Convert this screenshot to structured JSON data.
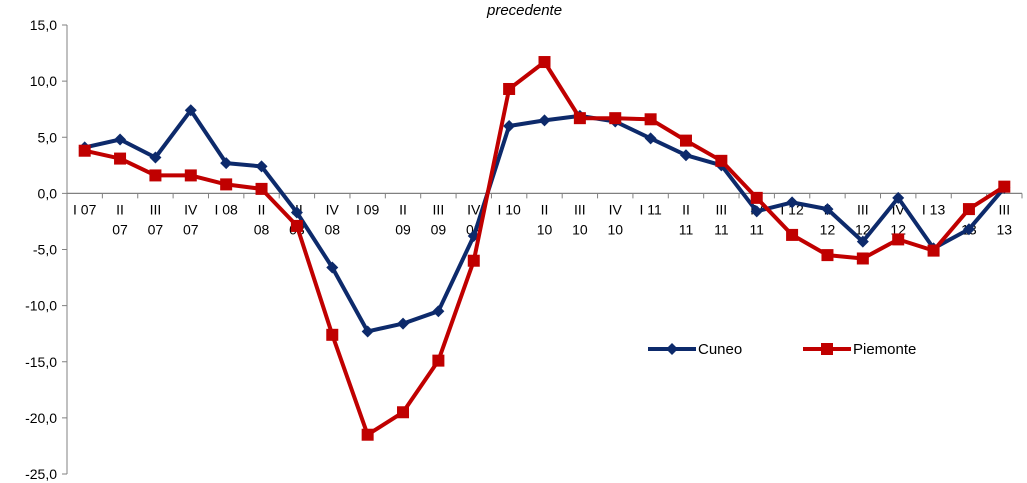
{
  "chart_data": {
    "type": "line",
    "title": "precedente",
    "categories": [
      [
        "I 07"
      ],
      [
        "II",
        "07"
      ],
      [
        "III",
        "07"
      ],
      [
        "IV",
        "07"
      ],
      [
        "I 08"
      ],
      [
        "II",
        "08"
      ],
      [
        "III",
        "08"
      ],
      [
        "IV",
        "08"
      ],
      [
        "I 09"
      ],
      [
        "II",
        "09"
      ],
      [
        "III",
        "09"
      ],
      [
        "IV",
        "09"
      ],
      [
        "I 10"
      ],
      [
        "II",
        "10"
      ],
      [
        "III",
        "10"
      ],
      [
        "IV",
        "10"
      ],
      [
        "I 11"
      ],
      [
        "II",
        "11"
      ],
      [
        "III",
        "11"
      ],
      [
        "IV",
        "11"
      ],
      [
        "I 12"
      ],
      [
        "II",
        "12"
      ],
      [
        "III",
        "12"
      ],
      [
        "IV",
        "12"
      ],
      [
        "I 13"
      ],
      [
        "II",
        "13"
      ],
      [
        "III",
        "13"
      ]
    ],
    "series": [
      {
        "name": "Cuneo",
        "color": "#0d2a6b",
        "marker": "diamond",
        "values": [
          4.1,
          4.8,
          3.2,
          7.4,
          2.7,
          2.4,
          -1.7,
          -6.6,
          -12.3,
          -11.6,
          -10.5,
          -3.8,
          6.0,
          6.5,
          6.9,
          6.4,
          4.9,
          3.4,
          2.5,
          -1.6,
          -0.8,
          -1.4,
          -4.3,
          -0.4,
          -4.9,
          -3.2,
          0.5
        ]
      },
      {
        "name": "Piemonte",
        "color": "#c00000",
        "marker": "square",
        "values": [
          3.8,
          3.1,
          1.6,
          1.6,
          0.8,
          0.4,
          -2.9,
          -12.6,
          -21.5,
          -19.5,
          -14.9,
          -6.0,
          9.3,
          11.7,
          6.7,
          6.7,
          6.6,
          4.7,
          2.9,
          -0.4,
          -3.7,
          -5.5,
          -5.8,
          -4.1,
          -5.1,
          -1.4,
          0.6
        ]
      }
    ],
    "ylim": [
      -25,
      15
    ],
    "yticks": [
      "15,0",
      "10,0",
      "5,0",
      "0,0",
      "-5,0",
      "-10,0",
      "-15,0",
      "-20,0",
      "-25,0"
    ],
    "ytick_values": [
      15,
      10,
      5,
      0,
      -5,
      -10,
      -15,
      -20,
      -25
    ],
    "xlabel": "",
    "ylabel": "",
    "grid": false,
    "legend": "right"
  }
}
